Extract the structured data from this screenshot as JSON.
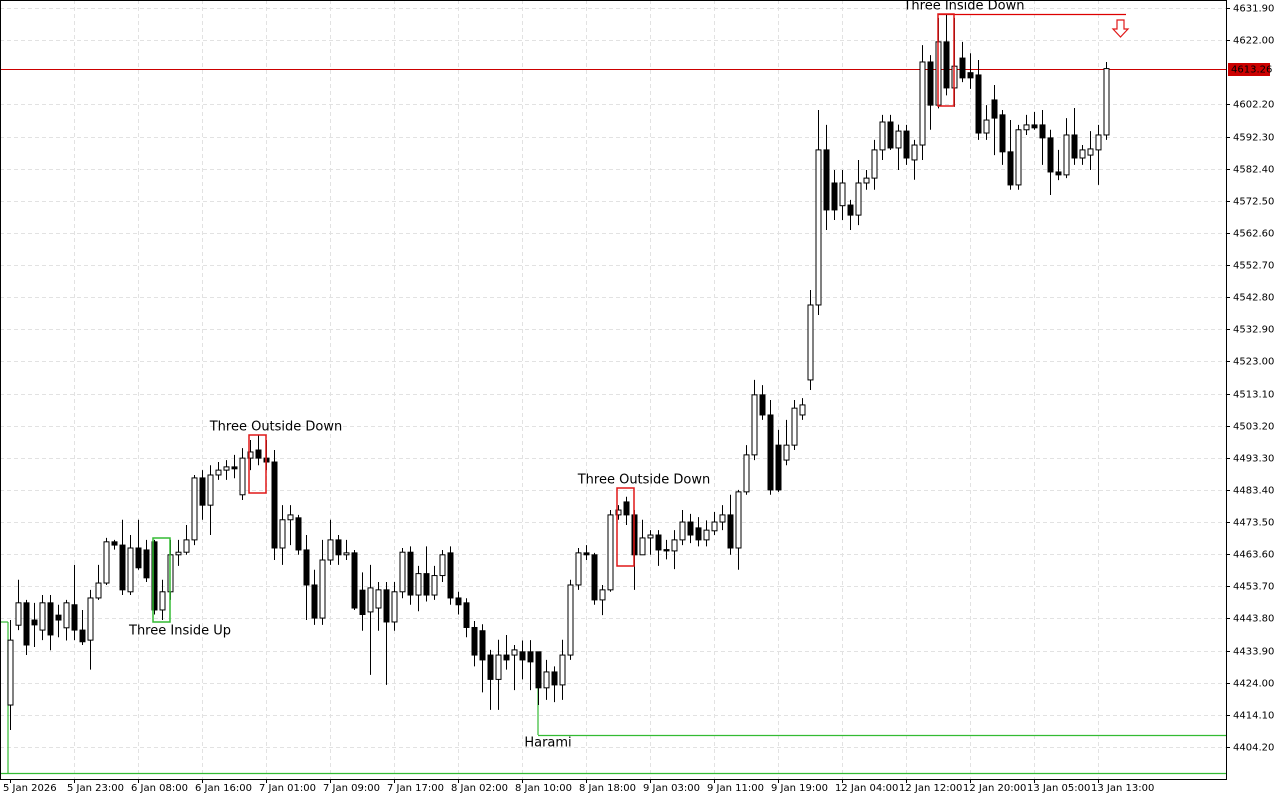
{
  "chart_data": {
    "type": "candlestick",
    "categories": [
      "5 Jan 2026",
      null,
      null,
      null,
      null,
      null,
      null,
      null,
      "5 Jan 23:00",
      null,
      null,
      null,
      null,
      null,
      null,
      null,
      "6 Jan 08:00",
      null,
      null,
      null,
      null,
      null,
      null,
      null,
      "6 Jan 16:00",
      null,
      null,
      null,
      null,
      null,
      null,
      null,
      "7 Jan 01:00",
      null,
      null,
      null,
      null,
      null,
      null,
      null,
      "7 Jan 09:00",
      null,
      null,
      null,
      null,
      null,
      null,
      null,
      "7 Jan 17:00",
      null,
      null,
      null,
      null,
      null,
      null,
      null,
      "8 Jan 02:00",
      null,
      null,
      null,
      null,
      null,
      null,
      null,
      "8 Jan 10:00",
      null,
      null,
      null,
      null,
      null,
      null,
      null,
      "8 Jan 18:00",
      null,
      null,
      null,
      null,
      null,
      null,
      null,
      "9 Jan 03:00",
      null,
      null,
      null,
      null,
      null,
      null,
      null,
      "9 Jan 11:00",
      null,
      null,
      null,
      null,
      null,
      null,
      null,
      "9 Jan 19:00",
      null,
      null,
      null,
      null,
      null,
      null,
      null,
      "12 Jan 04:00",
      null,
      null,
      null,
      null,
      null,
      null,
      null,
      "12 Jan 12:00",
      null,
      null,
      null,
      null,
      null,
      null,
      null,
      "12 Jan 20:00",
      null,
      null,
      null,
      null,
      null,
      null,
      null,
      "13 Jan 05:00",
      null,
      null,
      null,
      null,
      null,
      null,
      null,
      "13 Jan 13:00",
      null
    ],
    "open": [
      4417.1,
      4441.7,
      4448.6,
      4443.3,
      4440.2,
      4448.6,
      4444.8,
      4440.9,
      4448.0,
      4440.2,
      4437.1,
      4450.1,
      4454.7,
      4467.4,
      4466.4,
      4452.0,
      4465.5,
      4464.9,
      4467.4,
      4446.4,
      4452.0,
      4463.4,
      4464.2,
      4468.0,
      4487.1,
      4478.7,
      4488.0,
      4489.5,
      4490.5,
      4481.9,
      4493.2,
      4495.7,
      4493.2,
      4492.0,
      4465.5,
      4474.2,
      4474.8,
      4464.9,
      4454.1,
      4443.9,
      4461.8,
      4468.0,
      4463.4,
      4464.0,
      4452.5,
      4445.8,
      4447.0,
      4452.6,
      4442.7,
      4452.0,
      4464.2,
      4451.0,
      4457.6,
      4451.0,
      4457.0,
      4464.0,
      4450.1,
      4448.6,
      4441.0,
      4440.0,
      4432.5,
      4425.0,
      4432.5,
      4432.5,
      4433.5,
      4433.5,
      4433.5,
      4422.4,
      4427.3,
      4423.3,
      4432.5,
      4454.1,
      4464.0,
      4463.4,
      4449.5,
      4452.6,
      4475.7,
      4479.7,
      4475.7,
      4463.4,
      4468.6,
      4469.5,
      4465.0,
      4464.6,
      4468.0,
      4473.5,
      4471.7,
      4468.0,
      4470.8,
      4473.5,
      4475.7,
      4465.5,
      4482.8,
      4494.2,
      4512.7,
      4506.5,
      4497.2,
      4492.6,
      4497.2,
      4506.5,
      4517.3,
      4540.4,
      4588.2,
      4578.0,
      4571.0,
      4571.2,
      4568.1,
      4578.0,
      4579.5,
      4588.2,
      4596.8,
      4588.8,
      4594.0,
      4585.1,
      4589.7,
      4615.3,
      4602.0,
      4621.5,
      4607.3,
      4616.5,
      4612.0,
      4611.3,
      4593.4,
      4603.6,
      4599.0,
      4587.6,
      4577.4,
      4594.4,
      4595.9,
      4595.9,
      4591.9,
      4581.4,
      4580.5,
      4592.8,
      4585.7,
      4586.6,
      4588.2,
      4592.8
    ],
    "high": [
      4443.3,
      4455.7,
      4449.5,
      4448.6,
      4451.0,
      4451.0,
      4448.0,
      4449.5,
      4460.3,
      4446.4,
      4452.6,
      4460.3,
      4468.6,
      4468.0,
      4474.2,
      4469.5,
      4474.2,
      4468.0,
      4468.0,
      4455.7,
      4468.0,
      4468.0,
      4472.6,
      4488.0,
      4489.5,
      4491.0,
      4492.0,
      4492.6,
      4494.2,
      4496.3,
      4498.8,
      4500.3,
      4498.8,
      4495.7,
      4478.7,
      4478.7,
      4475.7,
      4469.5,
      4458.8,
      4468.0,
      4474.2,
      4469.5,
      4468.0,
      4464.9,
      4458.0,
      4460.3,
      4455.0,
      4455.0,
      4455.0,
      4465.5,
      4466.0,
      4460.0,
      4466.0,
      4460.0,
      4464.9,
      4466.0,
      4452.0,
      4450.0,
      4443.0,
      4442.0,
      4434.1,
      4437.2,
      4438.7,
      4435.6,
      4437.0,
      4437.1,
      4433.5,
      4431.0,
      4429.0,
      4437.2,
      4455.7,
      4465.5,
      4466.4,
      4464.0,
      4454.1,
      4477.2,
      4478.7,
      4481.3,
      4477.2,
      4474.2,
      4471.0,
      4471.0,
      4468.0,
      4471.0,
      4477.2,
      4476.0,
      4475.0,
      4474.0,
      4476.6,
      4478.7,
      4481.9,
      4483.4,
      4497.2,
      4517.3,
      4515.7,
      4511.1,
      4501.9,
      4505.0,
      4511.1,
      4511.7,
      4545.0,
      4600.5,
      4595.9,
      4582.0,
      4582.0,
      4572.8,
      4585.1,
      4582.0,
      4591.3,
      4599.0,
      4599.0,
      4596.0,
      4595.9,
      4591.3,
      4620.5,
      4617.4,
      4628.9,
      4629.8,
      4628.9,
      4621.5,
      4618.0,
      4615.9,
      4602.0,
      4608.2,
      4600.5,
      4597.4,
      4595.9,
      4599.0,
      4599.9,
      4600.5,
      4594.4,
      4588.2,
      4598.0,
      4601.1,
      4589.7,
      4594.0,
      4595.9,
      4615.3
    ],
    "low": [
      4409.4,
      4440.2,
      4432.5,
      4435.0,
      4437.1,
      4434.0,
      4438.0,
      4437.0,
      4437.1,
      4435.6,
      4428.0,
      4449.5,
      4454.1,
      4465.0,
      4451.0,
      4451.0,
      4458.8,
      4455.0,
      4445.0,
      4443.3,
      4449.5,
      4460.0,
      4463.4,
      4466.4,
      4474.2,
      4469.5,
      4486.5,
      4486.5,
      4487.0,
      4480.3,
      4489.5,
      4491.0,
      4489.5,
      4461.8,
      4460.3,
      4466.4,
      4463.4,
      4443.3,
      4441.8,
      4441.8,
      4460.3,
      4460.3,
      4461.8,
      4446.4,
      4440.0,
      4426.4,
      4440.0,
      4423.3,
      4440.0,
      4450.0,
      4448.0,
      4446.0,
      4449.0,
      4449.5,
      4455.0,
      4448.0,
      4445.0,
      4438.0,
      4429.0,
      4421.0,
      4415.6,
      4415.6,
      4428.0,
      4421.7,
      4425.0,
      4421.7,
      4417.1,
      4418.7,
      4418.0,
      4418.7,
      4431.0,
      4452.6,
      4461.8,
      4448.0,
      4444.8,
      4452.0,
      4474.2,
      4472.6,
      4452.6,
      4463.4,
      4463.4,
      4460.0,
      4462.0,
      4459.0,
      4466.4,
      4467.0,
      4466.0,
      4466.0,
      4469.5,
      4471.0,
      4463.4,
      4458.8,
      4481.9,
      4492.6,
      4505.0,
      4481.9,
      4482.8,
      4491.0,
      4495.7,
      4505.0,
      4514.2,
      4537.3,
      4563.5,
      4566.6,
      4566.6,
      4563.5,
      4565.0,
      4575.9,
      4575.9,
      4585.1,
      4588.2,
      4582.0,
      4583.6,
      4579.0,
      4585.1,
      4594.4,
      4601.0,
      4605.0,
      4601.5,
      4609.1,
      4607.0,
      4591.3,
      4591.3,
      4586.6,
      4583.6,
      4575.9,
      4575.9,
      4592.8,
      4594.4,
      4583.6,
      4574.3,
      4578.9,
      4579.5,
      4583.6,
      4583.6,
      4582.0,
      4577.4,
      4591.3
    ],
    "close": [
      4437.1,
      4448.6,
      4435.6,
      4441.8,
      4448.6,
      4438.7,
      4443.3,
      4448.6,
      4440.2,
      4436.6,
      4450.1,
      4454.7,
      4467.4,
      4466.4,
      4452.6,
      4465.5,
      4459.4,
      4456.3,
      4446.4,
      4452.0,
      4463.4,
      4464.2,
      4468.0,
      4487.1,
      4478.7,
      4488.0,
      4489.5,
      4490.5,
      4489.9,
      4493.2,
      4495.1,
      4493.2,
      4492.0,
      4465.5,
      4474.2,
      4475.7,
      4464.9,
      4454.1,
      4443.9,
      4461.8,
      4468.0,
      4463.4,
      4464.0,
      4447.0,
      4445.0,
      4453.2,
      4452.6,
      4442.7,
      4452.0,
      4464.2,
      4451.0,
      4457.6,
      4451.0,
      4457.0,
      4463.4,
      4450.1,
      4448.0,
      4441.0,
      4432.5,
      4431.0,
      4425.0,
      4432.5,
      4431.0,
      4434.1,
      4431.0,
      4430.4,
      4422.4,
      4427.3,
      4423.3,
      4432.5,
      4454.1,
      4464.0,
      4463.4,
      4449.5,
      4452.6,
      4475.7,
      4477.2,
      4475.7,
      4463.4,
      4468.6,
      4469.5,
      4464.9,
      4464.6,
      4468.0,
      4473.5,
      4469.5,
      4468.0,
      4471.0,
      4473.5,
      4475.7,
      4465.5,
      4482.8,
      4494.2,
      4512.7,
      4506.5,
      4483.4,
      4483.4,
      4497.2,
      4508.6,
      4509.6,
      4540.4,
      4588.2,
      4569.7,
      4569.7,
      4578.0,
      4568.1,
      4578.0,
      4579.5,
      4588.2,
      4596.8,
      4588.8,
      4594.0,
      4585.7,
      4589.7,
      4615.3,
      4602.0,
      4621.5,
      4607.3,
      4614.0,
      4610.4,
      4610.4,
      4593.4,
      4597.4,
      4598.0,
      4587.6,
      4577.4,
      4594.4,
      4595.9,
      4595.0,
      4591.9,
      4581.4,
      4580.5,
      4592.8,
      4585.7,
      4588.2,
      4588.5,
      4592.8,
      4613.26
    ],
    "up_color": "#ffffff",
    "down_color": "#000000",
    "wick_color": "#000000",
    "ylim": [
      4394.3,
      4634.4
    ],
    "yticks": [
      {
        "value": 4631.9,
        "label": "4631.90"
      },
      {
        "value": 4622.0,
        "label": "4622.00"
      },
      {
        "value": 4602.2,
        "label": "4602.20"
      },
      {
        "value": 4592.3,
        "label": "4592.30"
      },
      {
        "value": 4582.4,
        "label": "4582.40"
      },
      {
        "value": 4572.5,
        "label": "4572.50"
      },
      {
        "value": 4562.6,
        "label": "4562.60"
      },
      {
        "value": 4552.7,
        "label": "4552.70"
      },
      {
        "value": 4542.8,
        "label": "4542.80"
      },
      {
        "value": 4532.9,
        "label": "4532.90"
      },
      {
        "value": 4523.0,
        "label": "4523.00"
      },
      {
        "value": 4513.1,
        "label": "4513.10"
      },
      {
        "value": 4503.2,
        "label": "4503.20"
      },
      {
        "value": 4493.3,
        "label": "4493.30"
      },
      {
        "value": 4483.4,
        "label": "4483.40"
      },
      {
        "value": 4473.5,
        "label": "4473.50"
      },
      {
        "value": 4463.6,
        "label": "4463.60"
      },
      {
        "value": 4453.7,
        "label": "4453.70"
      },
      {
        "value": 4443.8,
        "label": "4443.80"
      },
      {
        "value": 4433.9,
        "label": "4433.90"
      },
      {
        "value": 4424.0,
        "label": "4424.00"
      },
      {
        "value": 4414.1,
        "label": "4414.10"
      },
      {
        "value": 4404.2,
        "label": "4404.20"
      }
    ],
    "grid": true,
    "current_price": 4613.26,
    "current_price_color": "#cc0000",
    "levels": [
      {
        "value": 4408.0,
        "color": "#33bb33"
      },
      {
        "value": 4396.2,
        "color": "#33bb33"
      },
      {
        "value": 4630.1,
        "color": "#dd0000"
      }
    ],
    "annotations": [
      {
        "text": "Three Inside Up",
        "color": "#33bb33"
      },
      {
        "text": "Three Outside Down",
        "color": "#e01818"
      },
      {
        "text": "Three Outside Down",
        "color": "#e01818"
      },
      {
        "text": "Three Inside Down",
        "color": "#e01818"
      },
      {
        "text": "Harami",
        "color": "#33bb33"
      }
    ]
  }
}
